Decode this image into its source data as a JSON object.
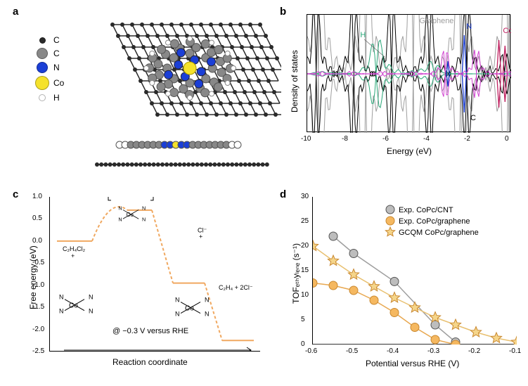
{
  "panels": {
    "a": {
      "label": "a"
    },
    "b": {
      "label": "b"
    },
    "c": {
      "label": "c"
    },
    "d": {
      "label": "d"
    }
  },
  "panel_a": {
    "legend": [
      {
        "element": "C",
        "color": "#2a2a2a",
        "size": 9
      },
      {
        "element": "C",
        "color": "#888888",
        "size": 16
      },
      {
        "element": "N",
        "color": "#1b3fd6",
        "size": 16
      },
      {
        "element": "Co",
        "color": "#f5e22b",
        "size": 20
      },
      {
        "element": "H",
        "color": "#ffffff",
        "size": 10
      }
    ]
  },
  "panel_b": {
    "type": "line",
    "title_labels": {
      "graphene": "Graphene",
      "N": "N",
      "Co": "Co",
      "C": "C",
      "H": "H"
    },
    "xlabel": "Energy (eV)",
    "ylabel": "Density of states",
    "xlim": [
      -10,
      0
    ],
    "xtick_step": 2,
    "xticks": [
      -10,
      -8,
      -6,
      -4,
      -2,
      0
    ],
    "series_colors": {
      "graphene": "#9e9e9e",
      "N": "#1033c8",
      "Co": "#c02060",
      "C": "#000000",
      "H": "#2aa879"
    },
    "background_color": "#ffffff"
  },
  "panel_c": {
    "type": "line",
    "xlabel": "Reaction coordinate",
    "ylabel": "Free energy (eV)",
    "ylim": [
      -2.5,
      1.0
    ],
    "yticks": [
      -2.5,
      -2.0,
      -1.5,
      -1.0,
      -0.5,
      0,
      0.5,
      1.0
    ],
    "annotation": "@ −0.3 V versus RHE",
    "line_color": "#f0a860",
    "dash": "4,3",
    "line_width": 2,
    "steps_y": [
      0.0,
      0.7,
      -0.95,
      -2.25
    ],
    "species": {
      "start_a": "C₂H₄Cl₂",
      "start_b": "+",
      "end": "C₂H₄ + 2Cl⁻",
      "mid": "Cl⁻",
      "mid_plus": "+"
    }
  },
  "panel_d": {
    "type": "scatter",
    "xlabel": "Potential versus RHE (V)",
    "ylabel": "TOFₑₜₕyₗₑₙₑ (s⁻¹)",
    "xlim": [
      -0.6,
      -0.1
    ],
    "xticks": [
      -0.6,
      -0.5,
      -0.4,
      -0.3,
      -0.2,
      -0.1
    ],
    "ylim": [
      0,
      30
    ],
    "yticks": [
      0,
      5,
      10,
      15,
      20,
      25,
      30
    ],
    "legend": [
      {
        "label": "Exp. CoPc/CNT",
        "marker": "circle",
        "fill": "#bdbdbd",
        "stroke": "#555555"
      },
      {
        "label": "Exp. CoPc/graphene",
        "marker": "circle",
        "fill": "#f5b860",
        "stroke": "#c98830"
      },
      {
        "label": "GCQM CoPc/graphene",
        "marker": "star",
        "fill": "#f5d58a",
        "stroke": "#c98830"
      }
    ],
    "series": {
      "cnt": {
        "color": "#9e9e9e",
        "x": [
          -0.55,
          -0.5,
          -0.4,
          -0.3,
          -0.25
        ],
        "y": [
          22,
          18.5,
          12.8,
          4.0,
          0.5
        ]
      },
      "graphene": {
        "color": "#e8a850",
        "x": [
          -0.6,
          -0.55,
          -0.5,
          -0.45,
          -0.4,
          -0.35,
          -0.3,
          -0.25
        ],
        "y": [
          12.5,
          12.0,
          11.0,
          9.0,
          6.5,
          3.5,
          1.0,
          0.0
        ]
      },
      "gcqm": {
        "color": "#e8c070",
        "x": [
          -0.6,
          -0.55,
          -0.5,
          -0.45,
          -0.4,
          -0.35,
          -0.3,
          -0.25,
          -0.2,
          -0.15,
          -0.1
        ],
        "y": [
          20,
          17,
          14.2,
          11.8,
          9.5,
          7.5,
          5.5,
          4.0,
          2.5,
          1.3,
          0.5
        ]
      }
    },
    "line_width": 1.5,
    "marker_size": 6
  }
}
